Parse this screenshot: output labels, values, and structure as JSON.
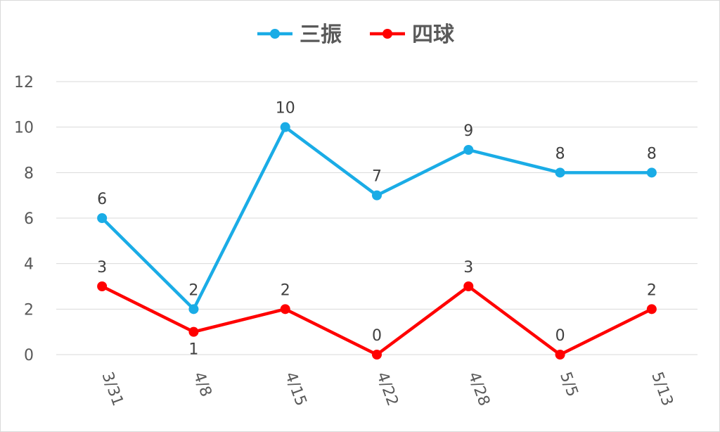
{
  "chart_data": {
    "type": "line",
    "categories": [
      "3/31",
      "4/8",
      "4/15",
      "4/22",
      "4/28",
      "5/5",
      "5/13"
    ],
    "series": [
      {
        "name": "三振",
        "color": "#1aace6",
        "values": [
          6,
          2,
          10,
          7,
          9,
          8,
          8
        ]
      },
      {
        "name": "四球",
        "color": "#ff0000",
        "values": [
          3,
          1,
          2,
          0,
          3,
          0,
          2
        ]
      }
    ],
    "ylim": [
      0,
      12
    ],
    "yticks": [
      "0",
      "2",
      "4",
      "6",
      "8",
      "10",
      "12"
    ],
    "grid": true,
    "legend_position": "top",
    "data_labels": true
  }
}
